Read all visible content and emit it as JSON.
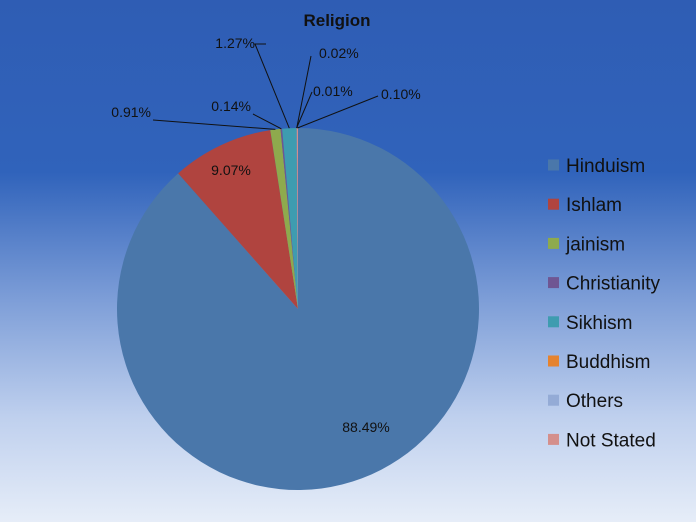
{
  "chart_data": {
    "type": "pie",
    "title": "Religion",
    "legend_position": "right",
    "series": [
      {
        "name": "Hinduism",
        "value": 88.49,
        "label": "88.49%",
        "color": "#4a77aa"
      },
      {
        "name": "Ishlam",
        "value": 9.07,
        "label": "9.07%",
        "color": "#b0443f"
      },
      {
        "name": "jainism",
        "value": 0.91,
        "label": "0.91%",
        "color": "#8eaa4d"
      },
      {
        "name": "Christianity",
        "value": 0.14,
        "label": "0.14%",
        "color": "#6f5693"
      },
      {
        "name": "Sikhism",
        "value": 1.27,
        "label": "1.27%",
        "color": "#3e9cb0"
      },
      {
        "name": "Buddhism",
        "value": 0.01,
        "label": "0.01%",
        "color": "#e5832f"
      },
      {
        "name": "Others",
        "value": 0.02,
        "label": "0.02%",
        "color": "#94abd6"
      },
      {
        "name": "Not Stated",
        "value": 0.1,
        "label": "0.10%",
        "color": "#d48f8c"
      }
    ]
  }
}
